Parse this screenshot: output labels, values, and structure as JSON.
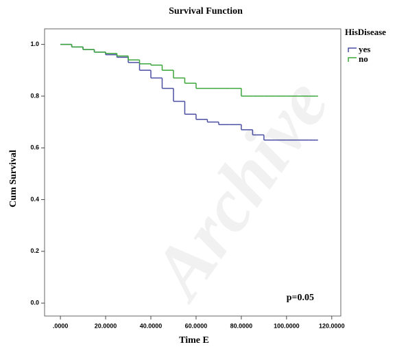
{
  "chart_data": {
    "type": "step",
    "title": "Survival Function",
    "x_label": "Time E",
    "y_label": "Cum Survival",
    "legend_title": "HisDisease",
    "annotation": "p=0.05",
    "watermark": "Archive",
    "x": [
      0,
      5,
      10,
      15,
      20,
      25,
      30,
      35,
      40,
      45,
      50,
      55,
      60,
      65,
      70,
      75,
      80,
      85,
      90,
      95,
      100,
      105,
      110,
      113
    ],
    "series": [
      {
        "name": "yes",
        "color": "#4a4fa3",
        "values": [
          1.0,
          0.99,
          0.98,
          0.97,
          0.96,
          0.95,
          0.93,
          0.9,
          0.87,
          0.83,
          0.78,
          0.73,
          0.71,
          0.7,
          0.69,
          0.69,
          0.67,
          0.65,
          0.63,
          0.63,
          0.63,
          0.63,
          0.63,
          0.63
        ]
      },
      {
        "name": "no",
        "color": "#3aa63a",
        "values": [
          1.0,
          0.99,
          0.98,
          0.97,
          0.965,
          0.955,
          0.94,
          0.925,
          0.92,
          0.9,
          0.87,
          0.85,
          0.83,
          0.83,
          0.83,
          0.83,
          0.8,
          0.8,
          0.8,
          0.8,
          0.8,
          0.8,
          0.8,
          0.8
        ]
      }
    ],
    "xlim": [
      -7,
      124
    ],
    "xticks": [
      {
        "value": 0,
        "label": ".0000"
      },
      {
        "value": 20,
        "label": "20.0000"
      },
      {
        "value": 40,
        "label": "40.0000"
      },
      {
        "value": 60,
        "label": "60.0000"
      },
      {
        "value": 80,
        "label": "80.0000"
      },
      {
        "value": 100,
        "label": "100.0000"
      },
      {
        "value": 120,
        "label": "120.0000"
      }
    ],
    "ylim": [
      -0.05,
      1.06
    ],
    "yticks": [
      {
        "value": 0,
        "label": "0.0"
      },
      0.2,
      0.4,
      0.6,
      0.8,
      {
        "value": 1,
        "label": "1.0"
      }
    ]
  }
}
